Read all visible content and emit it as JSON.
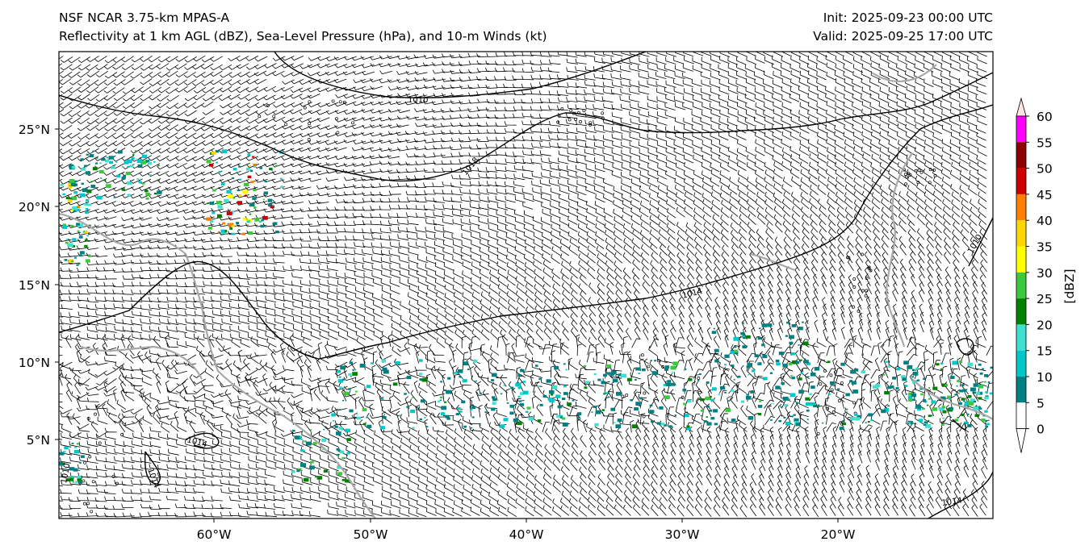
{
  "header": {
    "model": "NSF NCAR 3.75-km MPAS-A",
    "fields": "Reflectivity at 1 km AGL (dBZ), Sea-Level Pressure (hPa), and 10-m Winds (kt)",
    "init": "Init: 2025-09-23 00:00 UTC",
    "valid": "Valid: 2025-09-25 17:00 UTC"
  },
  "axes": {
    "lat_labels": [
      "25°N",
      "20°N",
      "15°N",
      "10°N",
      "5°N"
    ],
    "lon_labels": [
      "60°W",
      "50°W",
      "40°W",
      "30°W",
      "20°W"
    ]
  },
  "isobars": {
    "labels": [
      "1010",
      "1018",
      "1014",
      "1014",
      "1010",
      "1014",
      "1014",
      "1010"
    ]
  },
  "colorbar": {
    "label": "[dBZ]",
    "ticks": [
      "60",
      "55",
      "50",
      "45",
      "40",
      "35",
      "30",
      "25",
      "20",
      "15",
      "10",
      "5",
      "0"
    ],
    "colors": [
      "#ffe4e1",
      "#ff00ff",
      "#8b0000",
      "#cc0000",
      "#ff7f00",
      "#ffd700",
      "#ffff00",
      "#3cc83c",
      "#008000",
      "#40e0d0",
      "#00c8c8",
      "#008080",
      "#ffffff"
    ]
  }
}
